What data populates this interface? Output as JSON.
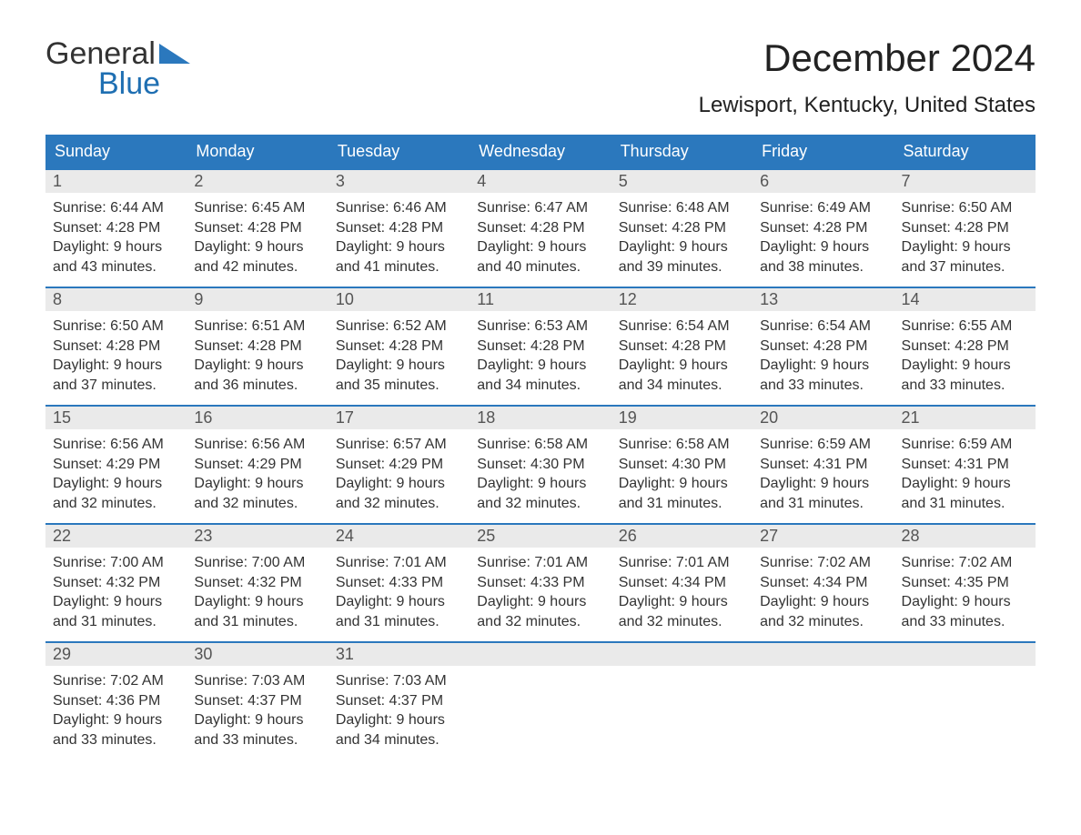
{
  "logo": {
    "general": "General",
    "blue": "Blue",
    "tri_color": "#2b78bd"
  },
  "title": "December 2024",
  "location": "Lewisport, Kentucky, United States",
  "colors": {
    "header_bg": "#2b78bd",
    "header_text": "#ffffff",
    "daynum_bg": "#eaeaea",
    "week_border": "#2b78bd",
    "body_text": "#333333",
    "background": "#ffffff"
  },
  "day_headers": [
    "Sunday",
    "Monday",
    "Tuesday",
    "Wednesday",
    "Thursday",
    "Friday",
    "Saturday"
  ],
  "weeks": [
    [
      {
        "n": "1",
        "sunrise": "Sunrise: 6:44 AM",
        "sunset": "Sunset: 4:28 PM",
        "d1": "Daylight: 9 hours",
        "d2": "and 43 minutes."
      },
      {
        "n": "2",
        "sunrise": "Sunrise: 6:45 AM",
        "sunset": "Sunset: 4:28 PM",
        "d1": "Daylight: 9 hours",
        "d2": "and 42 minutes."
      },
      {
        "n": "3",
        "sunrise": "Sunrise: 6:46 AM",
        "sunset": "Sunset: 4:28 PM",
        "d1": "Daylight: 9 hours",
        "d2": "and 41 minutes."
      },
      {
        "n": "4",
        "sunrise": "Sunrise: 6:47 AM",
        "sunset": "Sunset: 4:28 PM",
        "d1": "Daylight: 9 hours",
        "d2": "and 40 minutes."
      },
      {
        "n": "5",
        "sunrise": "Sunrise: 6:48 AM",
        "sunset": "Sunset: 4:28 PM",
        "d1": "Daylight: 9 hours",
        "d2": "and 39 minutes."
      },
      {
        "n": "6",
        "sunrise": "Sunrise: 6:49 AM",
        "sunset": "Sunset: 4:28 PM",
        "d1": "Daylight: 9 hours",
        "d2": "and 38 minutes."
      },
      {
        "n": "7",
        "sunrise": "Sunrise: 6:50 AM",
        "sunset": "Sunset: 4:28 PM",
        "d1": "Daylight: 9 hours",
        "d2": "and 37 minutes."
      }
    ],
    [
      {
        "n": "8",
        "sunrise": "Sunrise: 6:50 AM",
        "sunset": "Sunset: 4:28 PM",
        "d1": "Daylight: 9 hours",
        "d2": "and 37 minutes."
      },
      {
        "n": "9",
        "sunrise": "Sunrise: 6:51 AM",
        "sunset": "Sunset: 4:28 PM",
        "d1": "Daylight: 9 hours",
        "d2": "and 36 minutes."
      },
      {
        "n": "10",
        "sunrise": "Sunrise: 6:52 AM",
        "sunset": "Sunset: 4:28 PM",
        "d1": "Daylight: 9 hours",
        "d2": "and 35 minutes."
      },
      {
        "n": "11",
        "sunrise": "Sunrise: 6:53 AM",
        "sunset": "Sunset: 4:28 PM",
        "d1": "Daylight: 9 hours",
        "d2": "and 34 minutes."
      },
      {
        "n": "12",
        "sunrise": "Sunrise: 6:54 AM",
        "sunset": "Sunset: 4:28 PM",
        "d1": "Daylight: 9 hours",
        "d2": "and 34 minutes."
      },
      {
        "n": "13",
        "sunrise": "Sunrise: 6:54 AM",
        "sunset": "Sunset: 4:28 PM",
        "d1": "Daylight: 9 hours",
        "d2": "and 33 minutes."
      },
      {
        "n": "14",
        "sunrise": "Sunrise: 6:55 AM",
        "sunset": "Sunset: 4:28 PM",
        "d1": "Daylight: 9 hours",
        "d2": "and 33 minutes."
      }
    ],
    [
      {
        "n": "15",
        "sunrise": "Sunrise: 6:56 AM",
        "sunset": "Sunset: 4:29 PM",
        "d1": "Daylight: 9 hours",
        "d2": "and 32 minutes."
      },
      {
        "n": "16",
        "sunrise": "Sunrise: 6:56 AM",
        "sunset": "Sunset: 4:29 PM",
        "d1": "Daylight: 9 hours",
        "d2": "and 32 minutes."
      },
      {
        "n": "17",
        "sunrise": "Sunrise: 6:57 AM",
        "sunset": "Sunset: 4:29 PM",
        "d1": "Daylight: 9 hours",
        "d2": "and 32 minutes."
      },
      {
        "n": "18",
        "sunrise": "Sunrise: 6:58 AM",
        "sunset": "Sunset: 4:30 PM",
        "d1": "Daylight: 9 hours",
        "d2": "and 32 minutes."
      },
      {
        "n": "19",
        "sunrise": "Sunrise: 6:58 AM",
        "sunset": "Sunset: 4:30 PM",
        "d1": "Daylight: 9 hours",
        "d2": "and 31 minutes."
      },
      {
        "n": "20",
        "sunrise": "Sunrise: 6:59 AM",
        "sunset": "Sunset: 4:31 PM",
        "d1": "Daylight: 9 hours",
        "d2": "and 31 minutes."
      },
      {
        "n": "21",
        "sunrise": "Sunrise: 6:59 AM",
        "sunset": "Sunset: 4:31 PM",
        "d1": "Daylight: 9 hours",
        "d2": "and 31 minutes."
      }
    ],
    [
      {
        "n": "22",
        "sunrise": "Sunrise: 7:00 AM",
        "sunset": "Sunset: 4:32 PM",
        "d1": "Daylight: 9 hours",
        "d2": "and 31 minutes."
      },
      {
        "n": "23",
        "sunrise": "Sunrise: 7:00 AM",
        "sunset": "Sunset: 4:32 PM",
        "d1": "Daylight: 9 hours",
        "d2": "and 31 minutes."
      },
      {
        "n": "24",
        "sunrise": "Sunrise: 7:01 AM",
        "sunset": "Sunset: 4:33 PM",
        "d1": "Daylight: 9 hours",
        "d2": "and 31 minutes."
      },
      {
        "n": "25",
        "sunrise": "Sunrise: 7:01 AM",
        "sunset": "Sunset: 4:33 PM",
        "d1": "Daylight: 9 hours",
        "d2": "and 32 minutes."
      },
      {
        "n": "26",
        "sunrise": "Sunrise: 7:01 AM",
        "sunset": "Sunset: 4:34 PM",
        "d1": "Daylight: 9 hours",
        "d2": "and 32 minutes."
      },
      {
        "n": "27",
        "sunrise": "Sunrise: 7:02 AM",
        "sunset": "Sunset: 4:34 PM",
        "d1": "Daylight: 9 hours",
        "d2": "and 32 minutes."
      },
      {
        "n": "28",
        "sunrise": "Sunrise: 7:02 AM",
        "sunset": "Sunset: 4:35 PM",
        "d1": "Daylight: 9 hours",
        "d2": "and 33 minutes."
      }
    ],
    [
      {
        "n": "29",
        "sunrise": "Sunrise: 7:02 AM",
        "sunset": "Sunset: 4:36 PM",
        "d1": "Daylight: 9 hours",
        "d2": "and 33 minutes."
      },
      {
        "n": "30",
        "sunrise": "Sunrise: 7:03 AM",
        "sunset": "Sunset: 4:37 PM",
        "d1": "Daylight: 9 hours",
        "d2": "and 33 minutes."
      },
      {
        "n": "31",
        "sunrise": "Sunrise: 7:03 AM",
        "sunset": "Sunset: 4:37 PM",
        "d1": "Daylight: 9 hours",
        "d2": "and 34 minutes."
      },
      null,
      null,
      null,
      null
    ]
  ]
}
